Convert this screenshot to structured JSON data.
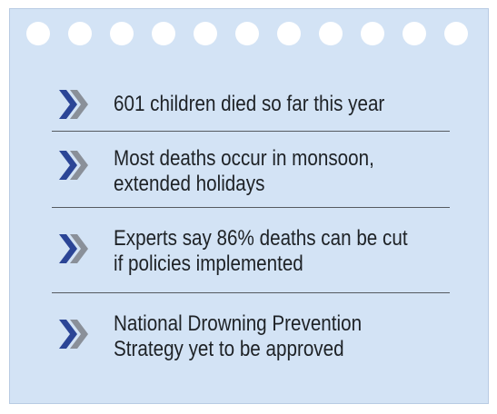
{
  "colors": {
    "card_background": "#d3e3f5",
    "chevron_front": "#2b4596",
    "chevron_back": "#8a9099",
    "divider": "#555a60",
    "text": "#1e2226"
  },
  "card": {
    "binder_hole_count": 11
  },
  "items": [
    {
      "icon": "double-chevron-right-icon",
      "text": "601 children died so far this year"
    },
    {
      "icon": "double-chevron-right-icon",
      "text": "Most deaths occur in monsoon,\nextended holidays"
    },
    {
      "icon": "double-chevron-right-icon",
      "text": "Experts say 86% deaths can be cut\nif policies implemented"
    },
    {
      "icon": "double-chevron-right-icon",
      "text": "National Drowning Prevention\nStrategy yet to be approved"
    }
  ]
}
